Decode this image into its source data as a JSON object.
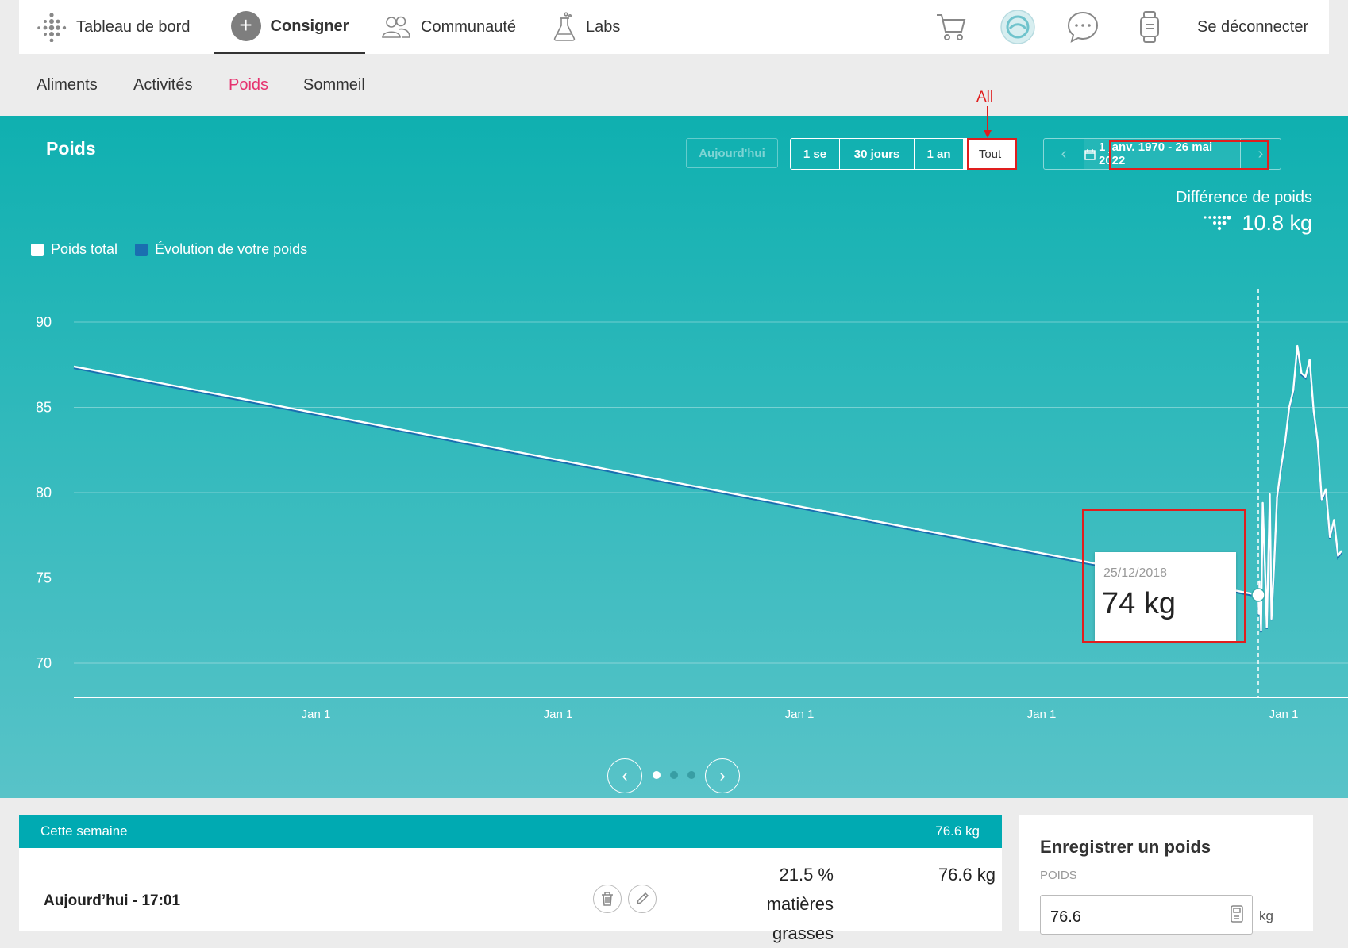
{
  "topnav": {
    "dashboard": "Tableau de bord",
    "log": "Consigner",
    "community": "Communauté",
    "labs": "Labs",
    "logout": "Se déconnecter"
  },
  "subnav": {
    "items": [
      "Aliments",
      "Activités",
      "Poids",
      "Sommeil"
    ],
    "active": "Poids"
  },
  "panel": {
    "title": "Poids",
    "today_button": "Aujourd'hui",
    "ranges": [
      "1 se",
      "30 jours",
      "1 an",
      "Tout"
    ],
    "selected_range": "Tout",
    "date_range": "1 janv. 1970 - 26 mai 2022",
    "diff_label": "Différence de poids",
    "diff_value": "10.8 kg",
    "legend": [
      "Poids total",
      "Évolution de votre poids"
    ],
    "annotation": "All"
  },
  "colors": {
    "accent": "#00aab2",
    "active_tab": "#e6326e",
    "trend": "#1a6fb0",
    "annotation": "#e01e1e"
  },
  "chart_data": {
    "type": "line",
    "y_ticks": [
      90,
      85,
      80,
      75,
      70
    ],
    "ylim": [
      68,
      92
    ],
    "x_tick_labels": [
      "Jan 1",
      "Jan 1",
      "Jan 1",
      "Jan 1",
      "Jan 1"
    ],
    "series": [
      {
        "name": "Poids total",
        "x": [
          "1970-01-01",
          "2018-12-25",
          "2019-01-05",
          "2019-01-12",
          "2019-02-05",
          "2019-03-01",
          "2019-04-10",
          "2019-05-01",
          "2019-06-15",
          "2019-07-10",
          "2019-08-20",
          "2019-10-01",
          "2019-12-01",
          "2020-02-01",
          "2020-04-01",
          "2020-06-01",
          "2020-08-01",
          "2020-10-01",
          "2020-12-01",
          "2021-02-01",
          "2021-04-01",
          "2021-06-01",
          "2021-08-01",
          "2021-10-01",
          "2021-12-01",
          "2022-02-01",
          "2022-04-01",
          "2022-05-26"
        ],
        "values": [
          87.4,
          74,
          72.9,
          74.8,
          71.9,
          79.4,
          75,
          72.1,
          79.9,
          72.6,
          75.8,
          79.7,
          81.5,
          83,
          85,
          86,
          88.6,
          87,
          86.8,
          87.8,
          84.8,
          83,
          79.6,
          80.2,
          77.4,
          78.4,
          76.3,
          76.6
        ]
      }
    ],
    "grid": true
  },
  "tooltip": {
    "date": "25/12/2018",
    "value": "74 kg"
  },
  "week": {
    "title": "Cette semaine",
    "total": "76.6 kg",
    "row_title": "Aujourd’hui - 17:01",
    "fat_lines": [
      "21.5 %",
      "matières",
      "grasses"
    ],
    "row_weight": "76.6 kg"
  },
  "log_weight": {
    "title": "Enregistrer un poids",
    "label": "POIDS",
    "value": "76.6",
    "unit": "kg"
  }
}
